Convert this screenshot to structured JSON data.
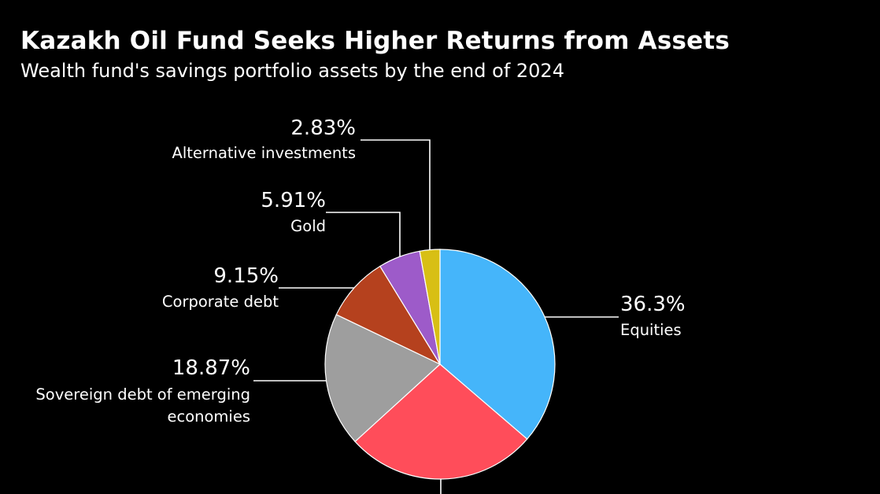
{
  "title": "Kazakh Oil Fund Seeks Higher Returns from Assets",
  "subtitle": "Wealth fund's savings portfolio assets by the end of 2024",
  "chart_data": {
    "type": "pie",
    "title": "Kazakh Oil Fund Seeks Higher Returns from Assets",
    "subtitle": "Wealth fund's savings portfolio assets by the end of 2024",
    "start": "12 o'clock",
    "direction": "clockwise",
    "slices": [
      {
        "label": "Equities",
        "value": 36.3,
        "value_text": "36.3%",
        "color": "#45b5fa",
        "label_lines": [
          "Equities"
        ]
      },
      {
        "label": "",
        "value": 26.94,
        "value_text": "",
        "color": "#ff4d5a",
        "label_lines": []
      },
      {
        "label": "Sovereign debt of emerging economies",
        "value": 18.87,
        "value_text": "18.87%",
        "color": "#9e9e9e",
        "label_lines": [
          "Sovereign debt of emerging",
          "economies"
        ]
      },
      {
        "label": "Corporate debt",
        "value": 9.15,
        "value_text": "9.15%",
        "color": "#b5411e",
        "label_lines": [
          "Corporate debt"
        ]
      },
      {
        "label": "Gold",
        "value": 5.91,
        "value_text": "5.91%",
        "color": "#9d5bc9",
        "label_lines": [
          "Gold"
        ]
      },
      {
        "label": "Alternative investments",
        "value": 2.83,
        "value_text": "2.83%",
        "color": "#d8bf14",
        "label_lines": [
          "Alternative investments"
        ]
      }
    ]
  }
}
